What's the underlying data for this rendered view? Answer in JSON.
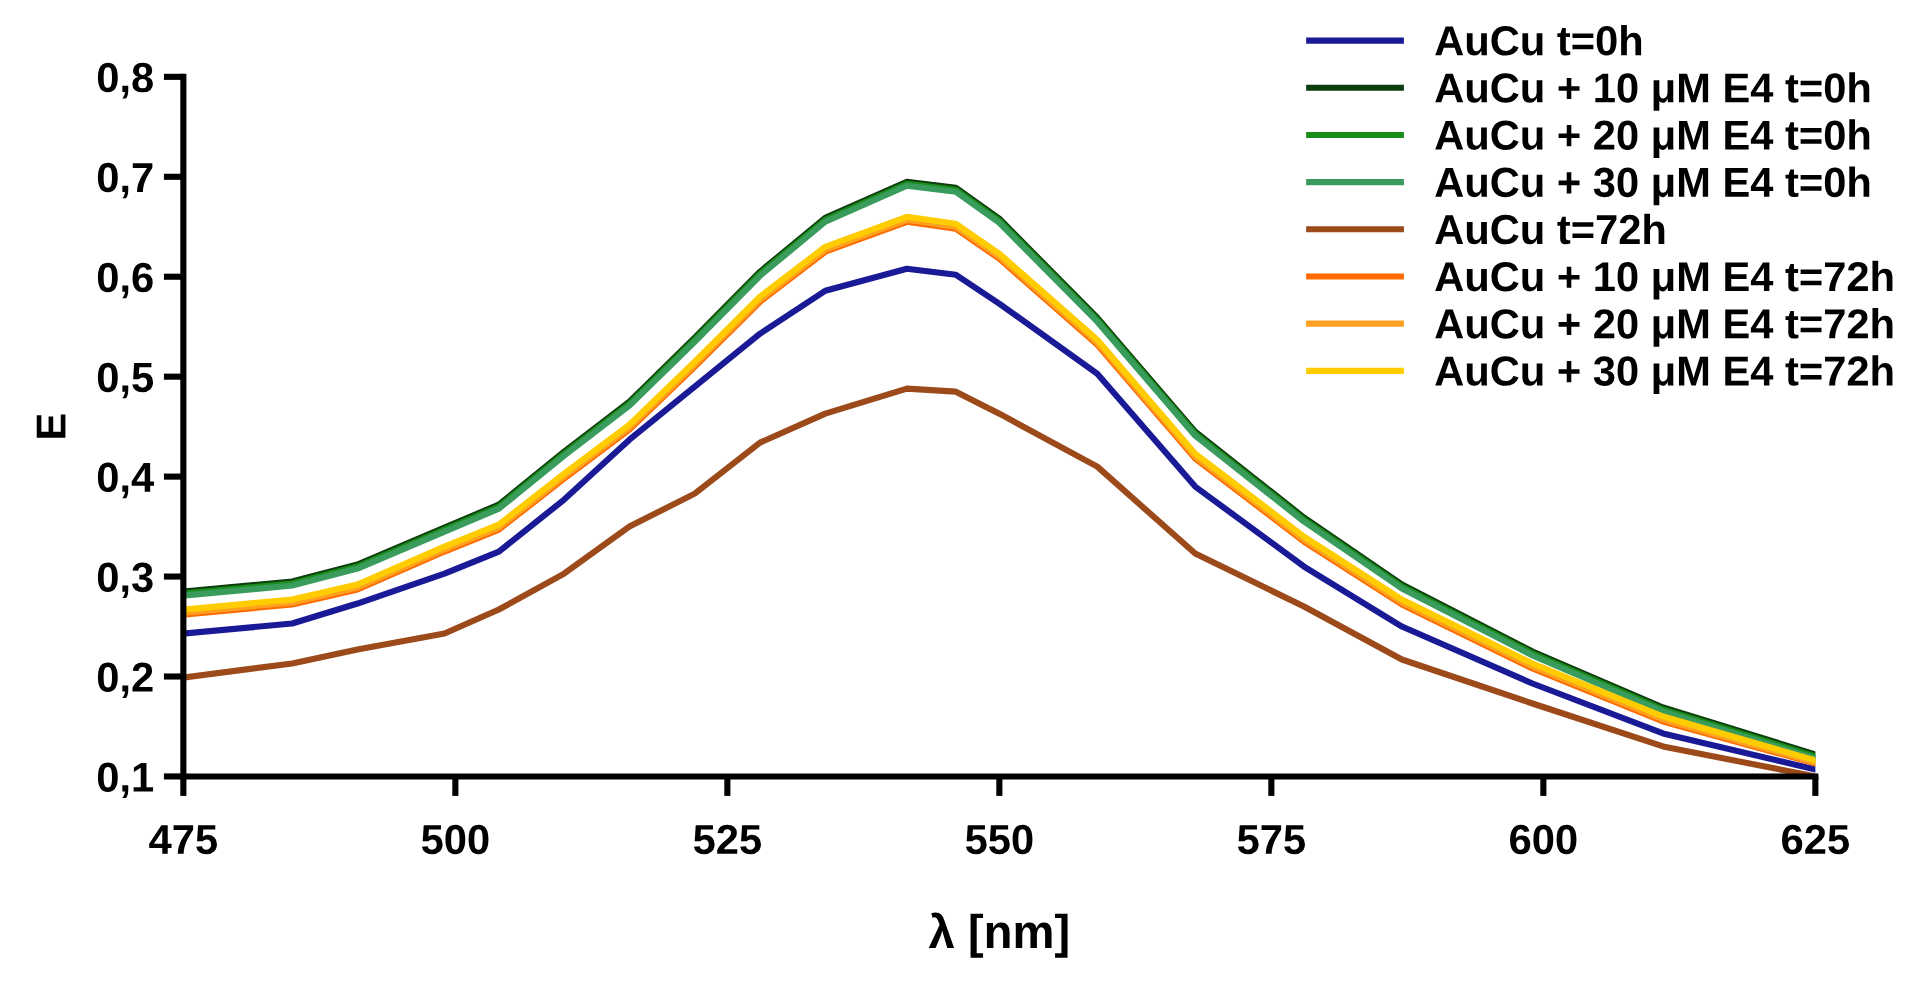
{
  "chart_data": {
    "type": "line",
    "xlabel": "λ [nm]",
    "ylabel": "E",
    "x": [
      475,
      485,
      491,
      499,
      504,
      510,
      516,
      522,
      528,
      534,
      541.5,
      546,
      550,
      559,
      568,
      578,
      587,
      599,
      611,
      625
    ],
    "series": [
      {
        "name": "AuCu t=0h",
        "color": "#1a1a96",
        "values": [
          0.243,
          0.253,
          0.273,
          0.303,
          0.325,
          0.377,
          0.437,
          0.49,
          0.543,
          0.586,
          0.608,
          0.602,
          0.573,
          0.503,
          0.39,
          0.31,
          0.25,
          0.193,
          0.143,
          0.107
        ]
      },
      {
        "name": "AuCu + 10 μM E4 t=0h",
        "color": "#0d3d0d",
        "values": [
          0.285,
          0.295,
          0.312,
          0.349,
          0.372,
          0.425,
          0.475,
          0.539,
          0.605,
          0.659,
          0.695,
          0.689,
          0.658,
          0.559,
          0.445,
          0.359,
          0.292,
          0.225,
          0.169,
          0.122
        ]
      },
      {
        "name": "AuCu + 20 μM E4 t=0h",
        "color": "#1a8c1a",
        "values": [
          0.283,
          0.293,
          0.31,
          0.347,
          0.37,
          0.423,
          0.473,
          0.537,
          0.603,
          0.657,
          0.693,
          0.687,
          0.656,
          0.557,
          0.443,
          0.357,
          0.29,
          0.223,
          0.167,
          0.12
        ]
      },
      {
        "name": "AuCu + 30 μM E4 t=0h",
        "color": "#3a9c5c",
        "values": [
          0.281,
          0.291,
          0.308,
          0.345,
          0.368,
          0.421,
          0.471,
          0.535,
          0.601,
          0.655,
          0.691,
          0.685,
          0.654,
          0.555,
          0.441,
          0.355,
          0.288,
          0.221,
          0.165,
          0.118
        ]
      },
      {
        "name": "AuCu t=72h",
        "color": "#9c4a1a",
        "values": [
          0.199,
          0.213,
          0.227,
          0.243,
          0.267,
          0.303,
          0.35,
          0.383,
          0.434,
          0.463,
          0.488,
          0.485,
          0.463,
          0.41,
          0.323,
          0.27,
          0.217,
          0.173,
          0.13,
          0.1
        ]
      },
      {
        "name": "AuCu + 10 μM E4 t=72h",
        "color": "#ff6a00",
        "values": [
          0.262,
          0.272,
          0.287,
          0.325,
          0.347,
          0.398,
          0.447,
          0.51,
          0.575,
          0.625,
          0.655,
          0.648,
          0.618,
          0.532,
          0.418,
          0.335,
          0.272,
          0.208,
          0.155,
          0.113
        ]
      },
      {
        "name": "AuCu + 20 μM E4 t=72h",
        "color": "#ffa020",
        "values": [
          0.264,
          0.274,
          0.289,
          0.327,
          0.349,
          0.4,
          0.449,
          0.512,
          0.577,
          0.627,
          0.657,
          0.65,
          0.62,
          0.534,
          0.42,
          0.337,
          0.274,
          0.21,
          0.157,
          0.114
        ]
      },
      {
        "name": "AuCu + 30 μM E4 t=72h",
        "color": "#ffcc00",
        "values": [
          0.267,
          0.277,
          0.292,
          0.33,
          0.352,
          0.403,
          0.452,
          0.515,
          0.58,
          0.63,
          0.66,
          0.653,
          0.623,
          0.537,
          0.423,
          0.34,
          0.277,
          0.213,
          0.16,
          0.116
        ]
      }
    ],
    "xlim": [
      475,
      625
    ],
    "xticks": [
      475,
      500,
      525,
      550,
      575,
      600,
      625
    ],
    "ylim": [
      0.1,
      0.8
    ],
    "yticks": [
      {
        "value": 0.1,
        "label": "0,1"
      },
      {
        "value": 0.2,
        "label": "0,2"
      },
      {
        "value": 0.3,
        "label": "0,3"
      },
      {
        "value": 0.4,
        "label": "0,4"
      },
      {
        "value": 0.5,
        "label": "0,5"
      },
      {
        "value": 0.6,
        "label": "0,6"
      },
      {
        "value": 0.7,
        "label": "0,7"
      },
      {
        "value": 0.8,
        "label": "0,8"
      }
    ],
    "grid": false,
    "legend": "top right",
    "marker": "none",
    "line_style": "solid"
  }
}
